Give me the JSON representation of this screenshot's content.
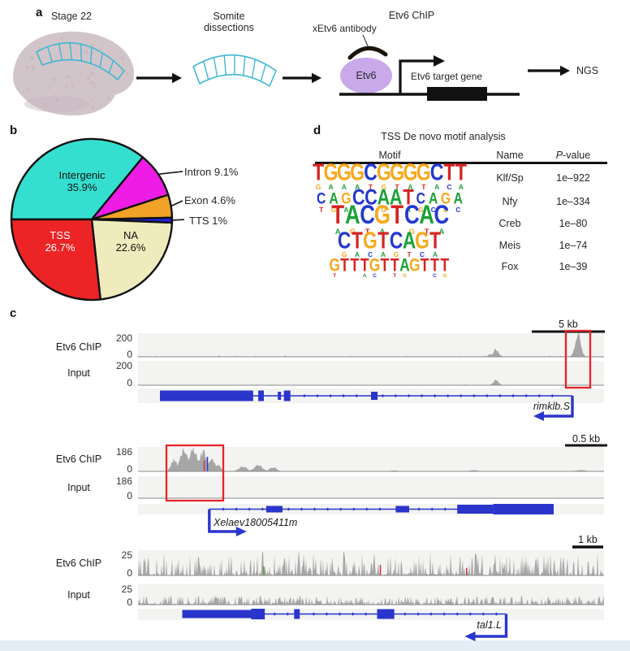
{
  "panel_a": {
    "label": "a",
    "stage": "Stage 22",
    "somite_line1": "Somite",
    "somite_line2": "dissections",
    "chip_title": "Etv6 ChIP",
    "antibody": "xEtv6 antibody",
    "protein": "Etv6",
    "target_gene": "Etv6 target gene",
    "ngs": "NGS"
  },
  "panel_b": {
    "label": "b",
    "chart_data": {
      "type": "pie",
      "title": "",
      "start_angle_deg": 180,
      "direction": "clockwise",
      "slices": [
        {
          "name": "Intergenic",
          "value": 35.9,
          "color": "#35dfd0",
          "label_line1": "Intergenic",
          "label_line2": "35.9%",
          "placement": "inside",
          "text_color": "#111111"
        },
        {
          "name": "Intron",
          "value": 9.1,
          "color": "#ee1ce4",
          "label": "Intron 9.1%",
          "placement": "outside",
          "text_color": "#262626"
        },
        {
          "name": "Exon",
          "value": 4.6,
          "color": "#f1a227",
          "label": "Exon 4.6%",
          "placement": "outside",
          "text_color": "#262626"
        },
        {
          "name": "TTS",
          "value": 1.0,
          "color": "#2121d8",
          "label": "TTS 1%",
          "placement": "outside",
          "text_color": "#262626"
        },
        {
          "name": "NA",
          "value": 22.6,
          "color": "#f0ebbd",
          "label_line1": "NA",
          "label_line2": "22.6%",
          "placement": "inside",
          "text_color": "#111111"
        },
        {
          "name": "TSS",
          "value": 26.7,
          "color": "#ec2426",
          "label_line1": "TSS",
          "label_line2": "26.7%",
          "placement": "inside",
          "text_color": "#ffffff"
        }
      ]
    }
  },
  "panel_d": {
    "label": "d",
    "title": "TSS De novo motif analysis",
    "columns": [
      "Motif",
      "Name",
      "P-value"
    ],
    "pvalue_header_italic": "P",
    "pvalue_header_rest": "-value",
    "base_colors": {
      "A": "#1ca23a",
      "C": "#2438cf",
      "G": "#f5a91e",
      "T": "#d42522"
    },
    "rows": [
      {
        "name": "Klf/Sp",
        "pvalue": "1e–922",
        "motif_pre": "",
        "motif_core": "TGGGCGGGGCTT",
        "motif_post": "",
        "motif_sub": "GAAATGTATACA"
      },
      {
        "name": "Nfy",
        "pvalue": "1e–334",
        "motif_pre": "CAG",
        "motif_core": "CCAAT",
        "motif_post": "CAGA",
        "motif_sub": "TGA  G AGCGC"
      },
      {
        "name": "Creb",
        "pvalue": "1e–80",
        "motif_pre": "",
        "motif_core": "TACGTCAC",
        "motif_post": "",
        "motif_sub": "AGTA GTA"
      },
      {
        "name": "Meis",
        "pvalue": "1e–74",
        "motif_pre": "",
        "motif_core": "CTGTCAGT",
        "motif_post": "",
        "motif_sub": "GACAGTCA"
      },
      {
        "name": "Fox",
        "pvalue": "1e–39",
        "motif_pre": "",
        "motif_core": "GTTTGTTAGTTT",
        "motif_post": "",
        "motif_sub": "T  AC TG  CG"
      }
    ]
  },
  "panel_c": {
    "label": "c",
    "groups": [
      {
        "scale_bar": "5 kb",
        "tracks": [
          {
            "label": "Etv6 ChIP",
            "ymax": "200",
            "ymin": "0",
            "signal": {
              "noise": {
                "p": 0.3,
                "h": 0.05,
                "pow": 2
              },
              "peaks": [
                [
                  0.755,
                  0.1,
                  0.006
                ],
                [
                  0.768,
                  0.3,
                  0.008
                ],
                [
                  0.944,
                  0.94,
                  0.0085
                ]
              ],
              "marks": []
            }
          },
          {
            "label": "Input",
            "ymax": "200",
            "ymin": "0",
            "signal": {
              "noise": {
                "p": 0.25,
                "h": 0.04,
                "pow": 2
              },
              "peaks": [
                [
                  0.768,
                  0.22,
                  0.008
                ]
              ],
              "marks": []
            }
          }
        ],
        "highlighted_peak": true,
        "gene": {
          "name": "rimklb.S",
          "direction": "left",
          "tss": 0.932,
          "line": [
            0.047,
            0.932
          ],
          "exons": [
            [
              0.047,
              0.247,
              13
            ],
            [
              0.258,
              0.27,
              13
            ],
            [
              0.3,
              0.307,
              10
            ],
            [
              0.313,
              0.327,
              13
            ],
            [
              0.5,
              0.514,
              10
            ]
          ]
        }
      },
      {
        "scale_bar": "0.5 kb",
        "tracks": [
          {
            "label": "Etv6 ChIP",
            "ymax": "186",
            "ymin": "0",
            "signal": {
              "noise": {
                "p": 0.25,
                "h": 0.035,
                "pow": 2
              },
              "peaks": [
                [
                  0.078,
                  0.45,
                  0.01
                ],
                [
                  0.098,
                  0.8,
                  0.012
                ],
                [
                  0.118,
                  0.92,
                  0.012
                ],
                [
                  0.14,
                  0.75,
                  0.011
                ],
                [
                  0.158,
                  0.5,
                  0.01
                ],
                [
                  0.172,
                  0.28,
                  0.008
                ],
                [
                  0.225,
                  0.2,
                  0.012
                ],
                [
                  0.258,
                  0.24,
                  0.013
                ],
                [
                  0.29,
                  0.16,
                  0.011
                ],
                [
                  0.55,
                  0.04,
                  0.01
                ],
                [
                  0.72,
                  0.05,
                  0.012
                ],
                [
                  0.95,
                  0.05,
                  0.015
                ]
              ],
              "marks": [
                [
                  0.142,
                  0.45,
                  "#cc3333"
                ],
                [
                  0.149,
                  0.6,
                  "#2a3bd6"
                ]
              ]
            }
          },
          {
            "label": "Input",
            "ymax": "186",
            "ymin": "0",
            "signal": {
              "noise": {
                "p": 0.22,
                "h": 0.03,
                "pow": 2
              },
              "peaks": [],
              "marks": []
            }
          }
        ],
        "highlighted_peak": true,
        "gene": {
          "name": "Xelaev18005411m",
          "direction": "right",
          "tss": 0.153,
          "line": [
            0.153,
            0.892
          ],
          "exons": [
            [
              0.275,
              0.31,
              8
            ],
            [
              0.553,
              0.582,
              8
            ],
            [
              0.685,
              0.762,
              11
            ],
            [
              0.762,
              0.892,
              13
            ]
          ]
        }
      },
      {
        "scale_bar": "1 kb",
        "tracks": [
          {
            "label": "Etv6 ChIP",
            "ymax": "25",
            "ymin": "0",
            "signal": {
              "noise": {
                "p": 0.92,
                "h": 0.95,
                "pow": 3.2
              },
              "peaks": [
                [
                  0.345,
                  1.0,
                  0.0022
                ]
              ],
              "marks": [
                [
                  0.27,
                  0.35,
                  "#3f9b3f"
                ],
                [
                  0.52,
                  0.42,
                  "#cc3333"
                ],
                [
                  0.705,
                  0.3,
                  "#cc3333"
                ]
              ]
            }
          },
          {
            "label": "Input",
            "ymax": "25",
            "ymin": "0",
            "signal": {
              "noise": {
                "p": 0.95,
                "h": 0.45,
                "pow": 2.2
              },
              "peaks": [],
              "marks": []
            }
          }
        ],
        "highlighted_peak": false,
        "gene": {
          "name": "tal1.L",
          "direction": "left",
          "tss": 0.79,
          "line": [
            0.095,
            0.79
          ],
          "exons": [
            [
              0.095,
              0.243,
              10
            ],
            [
              0.243,
              0.272,
              13
            ],
            [
              0.335,
              0.347,
              12
            ],
            [
              0.513,
              0.55,
              12
            ]
          ]
        }
      }
    ]
  }
}
